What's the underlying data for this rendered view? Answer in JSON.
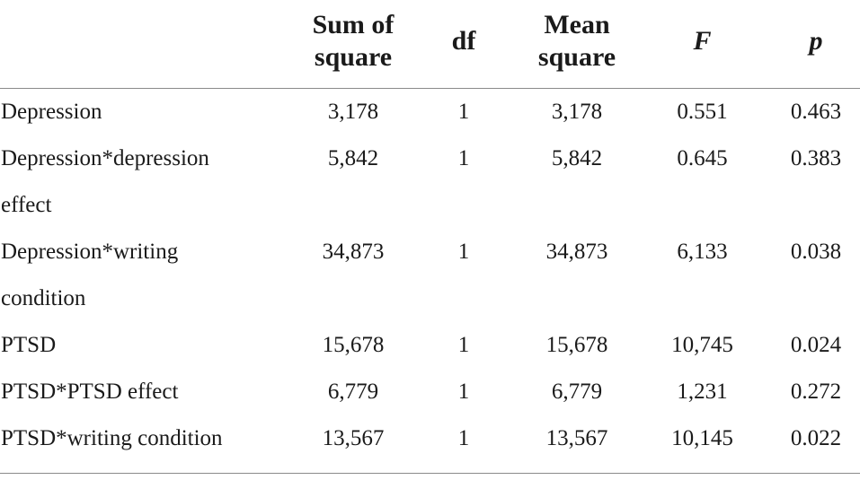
{
  "headers": {
    "label": "",
    "sum_of_square": [
      "Sum of",
      "square"
    ],
    "df": "df",
    "mean_square": [
      "Mean",
      "square"
    ],
    "f": "F",
    "p": "p"
  },
  "rows": [
    {
      "label": [
        "Depression"
      ],
      "ss": "3,178",
      "df": "1",
      "ms": "3,178",
      "f": "0.551",
      "p": "0.463"
    },
    {
      "label": [
        "Depression*depression",
        "effect"
      ],
      "ss": "5,842",
      "df": "1",
      "ms": "5,842",
      "f": "0.645",
      "p": "0.383"
    },
    {
      "label": [
        "Depression*writing",
        "condition"
      ],
      "ss": "34,873",
      "df": "1",
      "ms": "34,873",
      "f": "6,133",
      "p": "0.038"
    },
    {
      "label": [
        "PTSD"
      ],
      "ss": "15,678",
      "df": "1",
      "ms": "15,678",
      "f": "10,745",
      "p": "0.024"
    },
    {
      "label": [
        "PTSD*PTSD effect"
      ],
      "ss": "6,779",
      "df": "1",
      "ms": "6,779",
      "f": "1,231",
      "p": "0.272"
    },
    {
      "label": [
        "PTSD*writing condition"
      ],
      "ss": "13,567",
      "df": "1",
      "ms": "13,567",
      "f": "10,145",
      "p": "0.022"
    }
  ]
}
